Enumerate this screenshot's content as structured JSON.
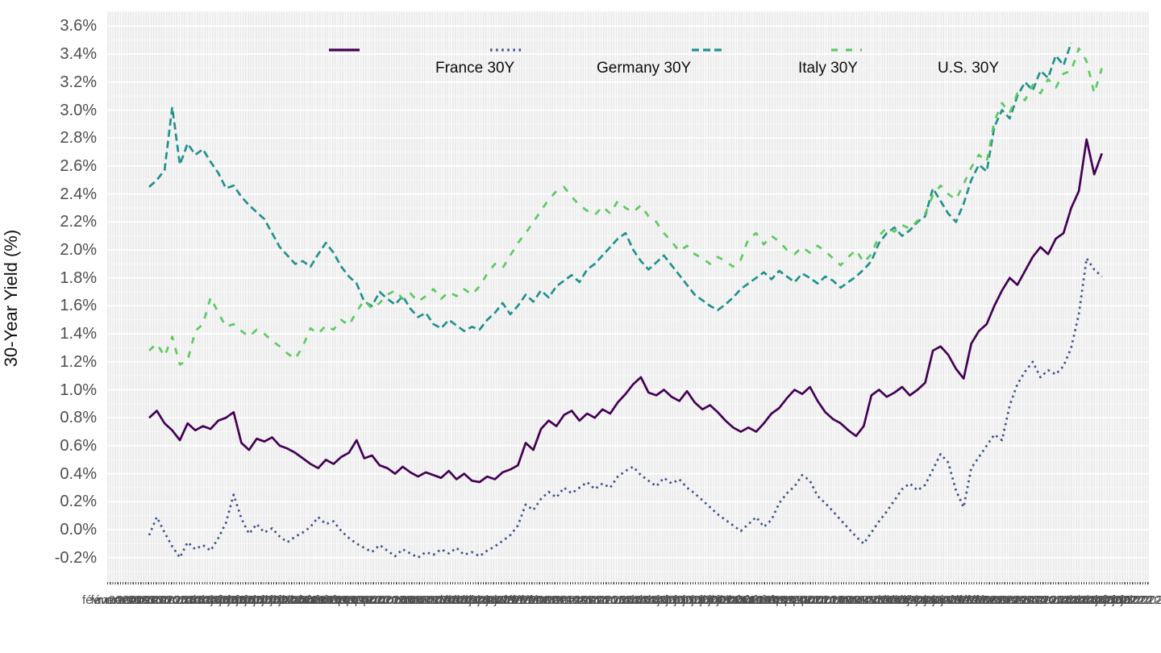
{
  "chart_data": {
    "type": "line",
    "title": "",
    "xlabel": "",
    "ylabel": "30-Year Yield (%)",
    "ylim": [
      -0.38,
      3.7
    ],
    "grid": "white-on-gray, dense weekly vertical stripes",
    "legend_position": "top-inside-horizontal",
    "y_axis": {
      "format": "percent",
      "tick_labels": [
        "3.6%",
        "3.4%",
        "3.2%",
        "3.0%",
        "2.8%",
        "2.6%",
        "2.4%",
        "2.2%",
        "2.0%",
        "1.8%",
        "1.6%",
        "1.4%",
        "1.2%",
        "1.0%",
        "0.8%",
        "0.6%",
        "0.4%",
        "0.2%",
        "0.0%",
        "-0.2%"
      ],
      "tick_values": [
        3.6,
        3.4,
        3.2,
        3.0,
        2.8,
        2.6,
        2.4,
        2.2,
        2.0,
        1.8,
        1.6,
        1.4,
        1.2,
        1.0,
        0.8,
        0.6,
        0.4,
        0.2,
        0.0,
        -0.2
      ]
    },
    "x_axis": {
      "kind": "weekly dates (French), labels heavily overlapping and illegible",
      "first_label": "févr. 2020",
      "last_label": "juin 2022",
      "label_runs": [
        {
          "t": "févr. 2020",
          "n": 2
        },
        {
          "t": "mars 2020",
          "n": 5
        },
        {
          "t": "avr. 2020",
          "n": 4
        },
        {
          "t": "mai 2020",
          "n": 4
        },
        {
          "t": "juin 2020",
          "n": 5
        },
        {
          "t": "juil. 2020",
          "n": 4
        },
        {
          "t": "août 2020",
          "n": 5
        },
        {
          "t": "sept. 2020",
          "n": 4
        },
        {
          "t": "oct. 2020",
          "n": 4
        },
        {
          "t": "nov. 2020",
          "n": 5
        },
        {
          "t": "déc. 2020",
          "n": 4
        },
        {
          "t": "janv. 2021",
          "n": 4
        },
        {
          "t": "févr. 2021",
          "n": 4
        },
        {
          "t": "mars 2021",
          "n": 5
        },
        {
          "t": "avr. 2021",
          "n": 4
        },
        {
          "t": "mai 2021",
          "n": 5
        },
        {
          "t": "juin 2021",
          "n": 4
        },
        {
          "t": "juil. 2021",
          "n": 4
        },
        {
          "t": "août 2021",
          "n": 5
        },
        {
          "t": "sept. 2021",
          "n": 4
        },
        {
          "t": "oct. 2021",
          "n": 4
        },
        {
          "t": "nov. 2021",
          "n": 5
        },
        {
          "t": "déc. 2021",
          "n": 4
        },
        {
          "t": "janv. 2022",
          "n": 5
        },
        {
          "t": "févr. 2022",
          "n": 4
        },
        {
          "t": "mars 2022",
          "n": 4
        },
        {
          "t": "avr. 2022",
          "n": 4
        },
        {
          "t": "mai 2022",
          "n": 5
        },
        {
          "t": "juin 2022",
          "n": 4
        }
      ]
    },
    "series": [
      {
        "name": "France 30Y",
        "color": "#440154",
        "linetype": "solid",
        "dash": "",
        "values": [
          0.8,
          0.85,
          0.76,
          0.71,
          0.64,
          0.76,
          0.71,
          0.74,
          0.72,
          0.78,
          0.8,
          0.84,
          0.62,
          0.57,
          0.65,
          0.63,
          0.66,
          0.6,
          0.58,
          0.55,
          0.51,
          0.47,
          0.44,
          0.5,
          0.47,
          0.52,
          0.55,
          0.64,
          0.51,
          0.53,
          0.46,
          0.44,
          0.4,
          0.45,
          0.41,
          0.38,
          0.41,
          0.39,
          0.37,
          0.42,
          0.36,
          0.4,
          0.35,
          0.34,
          0.38,
          0.36,
          0.41,
          0.43,
          0.46,
          0.62,
          0.57,
          0.72,
          0.78,
          0.74,
          0.82,
          0.85,
          0.78,
          0.83,
          0.8,
          0.86,
          0.83,
          0.91,
          0.97,
          1.04,
          1.09,
          0.98,
          0.96,
          1.0,
          0.95,
          0.92,
          0.99,
          0.91,
          0.86,
          0.89,
          0.84,
          0.78,
          0.73,
          0.7,
          0.73,
          0.7,
          0.76,
          0.83,
          0.87,
          0.94,
          1.0,
          0.97,
          1.02,
          0.92,
          0.84,
          0.79,
          0.76,
          0.71,
          0.67,
          0.74,
          0.96,
          1.0,
          0.95,
          0.98,
          1.02,
          0.96,
          1.0,
          1.05,
          1.28,
          1.31,
          1.25,
          1.15,
          1.08,
          1.33,
          1.42,
          1.47,
          1.6,
          1.71,
          1.8,
          1.75,
          1.85,
          1.95,
          2.02,
          1.97,
          2.08,
          2.12,
          2.3,
          2.42,
          2.79,
          2.54,
          2.69
        ]
      },
      {
        "name": "Germany 30Y",
        "color": "#3b528b",
        "linetype": "dotted",
        "dash": "2.5 4.6",
        "values": [
          -0.04,
          0.09,
          -0.02,
          -0.12,
          -0.2,
          -0.09,
          -0.14,
          -0.11,
          -0.15,
          -0.06,
          0.05,
          0.25,
          0.08,
          -0.03,
          0.04,
          -0.02,
          0.01,
          -0.05,
          -0.09,
          -0.05,
          -0.02,
          0.02,
          0.09,
          0.04,
          0.06,
          -0.01,
          -0.06,
          -0.1,
          -0.13,
          -0.16,
          -0.11,
          -0.15,
          -0.19,
          -0.14,
          -0.17,
          -0.2,
          -0.16,
          -0.18,
          -0.14,
          -0.17,
          -0.13,
          -0.18,
          -0.16,
          -0.19,
          -0.15,
          -0.12,
          -0.08,
          -0.04,
          0.03,
          0.18,
          0.14,
          0.22,
          0.27,
          0.23,
          0.3,
          0.26,
          0.3,
          0.34,
          0.29,
          0.33,
          0.3,
          0.38,
          0.42,
          0.45,
          0.39,
          0.35,
          0.31,
          0.37,
          0.33,
          0.36,
          0.3,
          0.26,
          0.21,
          0.16,
          0.11,
          0.07,
          0.03,
          -0.01,
          0.04,
          0.09,
          0.02,
          0.07,
          0.19,
          0.26,
          0.31,
          0.39,
          0.35,
          0.24,
          0.19,
          0.13,
          0.07,
          0.01,
          -0.05,
          -0.1,
          -0.02,
          0.06,
          0.13,
          0.21,
          0.29,
          0.33,
          0.28,
          0.32,
          0.43,
          0.54,
          0.48,
          0.28,
          0.16,
          0.44,
          0.52,
          0.6,
          0.68,
          0.64,
          0.89,
          1.04,
          1.13,
          1.2,
          1.09,
          1.14,
          1.11,
          1.17,
          1.3,
          1.54,
          1.94,
          1.86,
          1.81
        ]
      },
      {
        "name": "Italy 30Y",
        "color": "#21918c",
        "linetype": "dashed",
        "dash": "9 5",
        "values": [
          2.45,
          2.5,
          2.57,
          3.02,
          2.61,
          2.76,
          2.68,
          2.72,
          2.63,
          2.55,
          2.44,
          2.46,
          2.38,
          2.32,
          2.27,
          2.22,
          2.12,
          2.02,
          1.96,
          1.9,
          1.92,
          1.88,
          1.97,
          2.05,
          1.98,
          1.88,
          1.81,
          1.76,
          1.63,
          1.6,
          1.7,
          1.65,
          1.61,
          1.67,
          1.58,
          1.52,
          1.55,
          1.47,
          1.44,
          1.5,
          1.46,
          1.42,
          1.45,
          1.43,
          1.5,
          1.55,
          1.62,
          1.54,
          1.6,
          1.68,
          1.63,
          1.71,
          1.66,
          1.74,
          1.78,
          1.82,
          1.77,
          1.86,
          1.9,
          1.96,
          2.02,
          2.08,
          2.12,
          2.0,
          1.92,
          1.86,
          1.91,
          1.96,
          1.89,
          1.82,
          1.75,
          1.68,
          1.64,
          1.6,
          1.57,
          1.61,
          1.66,
          1.72,
          1.76,
          1.8,
          1.84,
          1.79,
          1.85,
          1.81,
          1.77,
          1.83,
          1.8,
          1.76,
          1.81,
          1.78,
          1.73,
          1.77,
          1.81,
          1.86,
          1.92,
          2.05,
          2.12,
          2.16,
          2.1,
          2.14,
          2.2,
          2.24,
          2.44,
          2.35,
          2.26,
          2.2,
          2.33,
          2.5,
          2.61,
          2.56,
          2.88,
          3.0,
          2.94,
          3.1,
          3.2,
          3.14,
          3.28,
          3.23,
          3.39,
          3.32,
          3.48
        ]
      },
      {
        "name": "U.S. 30Y",
        "color": "#5ec962",
        "linetype": "longdash",
        "dash": "8 10",
        "values": [
          1.28,
          1.33,
          1.24,
          1.38,
          1.18,
          1.21,
          1.42,
          1.47,
          1.66,
          1.55,
          1.45,
          1.47,
          1.42,
          1.38,
          1.43,
          1.4,
          1.35,
          1.31,
          1.26,
          1.22,
          1.31,
          1.44,
          1.4,
          1.46,
          1.43,
          1.5,
          1.46,
          1.56,
          1.64,
          1.58,
          1.62,
          1.68,
          1.71,
          1.65,
          1.69,
          1.63,
          1.67,
          1.72,
          1.65,
          1.7,
          1.67,
          1.72,
          1.68,
          1.74,
          1.83,
          1.9,
          1.87,
          1.96,
          2.05,
          2.12,
          2.2,
          2.28,
          2.36,
          2.42,
          2.45,
          2.38,
          2.32,
          2.28,
          2.25,
          2.31,
          2.26,
          2.35,
          2.3,
          2.27,
          2.32,
          2.24,
          2.2,
          2.12,
          2.06,
          1.99,
          2.03,
          1.97,
          1.94,
          1.9,
          1.95,
          1.92,
          1.88,
          1.93,
          2.08,
          2.12,
          2.04,
          2.1,
          2.06,
          2.0,
          1.97,
          2.02,
          1.98,
          2.03,
          1.99,
          1.94,
          1.89,
          1.95,
          2.0,
          1.91,
          1.97,
          2.1,
          2.16,
          2.13,
          2.18,
          2.15,
          2.21,
          2.26,
          2.39,
          2.46,
          2.4,
          2.36,
          2.47,
          2.59,
          2.68,
          2.63,
          2.92,
          3.05,
          2.98,
          3.12,
          3.07,
          3.18,
          3.12,
          3.22,
          3.16,
          3.26,
          3.28,
          3.44,
          3.35,
          3.12,
          3.3
        ]
      }
    ],
    "colors": {
      "panel_background": "#ebebeb",
      "panel_stripe": "#f7f7f7",
      "gridline": "#ffffff",
      "axis_tick_text": "#4d4d4d",
      "axis_title_text": "#111111"
    }
  }
}
